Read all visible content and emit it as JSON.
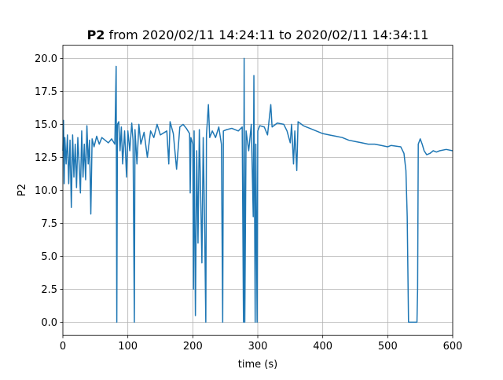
{
  "chart_data": {
    "type": "line",
    "title": [
      "P2",
      "from 2020/02/11 14:24:11 to 2020/02/11 14:34:11"
    ],
    "xlabel": "time (s)",
    "ylabel": "P2",
    "xlim": [
      0,
      600
    ],
    "ylim": [
      -1,
      21
    ],
    "xticks": [
      0,
      100,
      200,
      300,
      400,
      500,
      600
    ],
    "yticks": [
      {
        "value": 0,
        "label": "0.0"
      },
      2.5,
      {
        "value": 5,
        "label": "5.0"
      },
      7.5,
      {
        "value": 10,
        "label": "10.0"
      },
      12.5,
      {
        "value": 15,
        "label": "15.0"
      },
      17.5,
      {
        "value": 20,
        "label": "20.0"
      }
    ],
    "grid": true,
    "series": [
      {
        "color": "#1f77b4",
        "x": [
          0,
          1,
          2,
          3,
          5,
          7,
          9,
          11,
          13,
          15,
          17,
          19,
          21,
          23,
          25,
          27,
          29,
          31,
          33,
          35,
          37,
          39,
          41,
          43,
          45,
          48,
          52,
          56,
          60,
          65,
          70,
          75,
          80,
          82,
          83,
          84,
          86,
          88,
          90,
          92,
          95,
          98,
          100,
          103,
          106,
          108,
          110,
          111,
          114,
          117,
          120,
          125,
          130,
          135,
          140,
          145,
          150,
          160,
          163,
          165,
          170,
          175,
          180,
          185,
          190,
          195,
          196,
          197,
          200,
          201,
          202,
          204,
          206,
          208,
          210,
          212,
          214,
          216,
          218,
          220,
          221,
          224,
          226,
          230,
          235,
          240,
          244,
          246,
          247,
          252,
          260,
          270,
          276,
          278,
          279,
          280,
          282,
          286,
          290,
          293,
          294,
          296,
          297,
          299,
          300,
          303,
          310,
          315,
          320,
          322,
          330,
          340,
          345,
          350,
          352,
          355,
          357,
          360,
          362,
          370,
          375,
          380,
          390,
          400,
          410,
          420,
          430,
          440,
          450,
          460,
          470,
          480,
          490,
          500,
          505,
          520,
          525,
          528,
          530,
          532,
          545,
          546,
          547,
          550,
          553,
          556,
          560,
          565,
          570,
          575,
          580,
          590,
          600
        ],
        "values": [
          13,
          15.3,
          10.5,
          14,
          12,
          14.2,
          10.5,
          13.8,
          8.7,
          14.2,
          11,
          13.5,
          10.2,
          14,
          12,
          9.8,
          14.5,
          11,
          13.5,
          10.8,
          14.9,
          12,
          13.8,
          8.2,
          13.9,
          13.3,
          14.1,
          13.5,
          14,
          13.8,
          13.6,
          13.9,
          13.5,
          19.4,
          0,
          15,
          15.2,
          13,
          14.8,
          12,
          14.5,
          11,
          14.5,
          13,
          15.1,
          13.8,
          0,
          14.6,
          12,
          15,
          13.5,
          14.4,
          12.5,
          14.5,
          14,
          15,
          14.2,
          14.5,
          12,
          15.2,
          14.3,
          11.6,
          14.8,
          15,
          14.7,
          14.3,
          9.8,
          14,
          13.5,
          2.5,
          14.5,
          0.5,
          13,
          6,
          14.6,
          10,
          4.5,
          14,
          8,
          0,
          14.2,
          16.5,
          14,
          14.5,
          14,
          14.8,
          13.5,
          0,
          14.5,
          14.6,
          14.7,
          14.5,
          14.8,
          0,
          20,
          0,
          14.5,
          13,
          15,
          8,
          18.7,
          0,
          13.5,
          0,
          14.5,
          14.9,
          14.8,
          14.2,
          16.5,
          14.8,
          15.1,
          15,
          14.5,
          13.6,
          15,
          12,
          14.5,
          11.5,
          15.2,
          14.9,
          14.8,
          14.7,
          14.5,
          14.3,
          14.2,
          14.1,
          14,
          13.8,
          13.7,
          13.6,
          13.5,
          13.5,
          13.4,
          13.3,
          13.4,
          13.3,
          12.8,
          11.5,
          8,
          0,
          0,
          2.5,
          13.5,
          13.9,
          13.5,
          13,
          12.7,
          12.8,
          13,
          12.9,
          13,
          13.1,
          13
        ]
      }
    ]
  }
}
